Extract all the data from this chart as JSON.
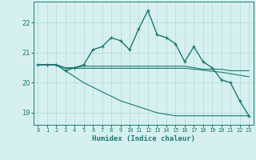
{
  "title": "",
  "xlabel": "Humidex (Indice chaleur)",
  "bg_color": "#d6f0f0",
  "line_color": "#1a7a6e",
  "grid_color": "#b0d8d8",
  "xlim": [
    -0.5,
    23.5
  ],
  "ylim": [
    18.6,
    22.7
  ],
  "xticks": [
    0,
    1,
    2,
    3,
    4,
    5,
    6,
    7,
    8,
    9,
    10,
    11,
    12,
    13,
    14,
    15,
    16,
    17,
    18,
    19,
    20,
    21,
    22,
    23
  ],
  "yticks": [
    19,
    20,
    21,
    22
  ],
  "line1": [
    20.6,
    20.6,
    20.6,
    20.4,
    20.5,
    20.6,
    21.1,
    21.2,
    21.5,
    21.4,
    21.1,
    21.8,
    22.4,
    21.6,
    21.5,
    21.3,
    20.7,
    21.2,
    20.7,
    20.5,
    20.1,
    20.0,
    19.4,
    18.9
  ],
  "line2": [
    20.6,
    20.6,
    20.6,
    20.5,
    20.5,
    20.55,
    20.55,
    20.55,
    20.55,
    20.55,
    20.55,
    20.55,
    20.55,
    20.55,
    20.55,
    20.55,
    20.55,
    20.5,
    20.45,
    20.45,
    20.45,
    20.4,
    20.4,
    20.4
  ],
  "line3": [
    20.6,
    20.6,
    20.6,
    20.48,
    20.48,
    20.48,
    20.48,
    20.48,
    20.48,
    20.48,
    20.48,
    20.48,
    20.48,
    20.48,
    20.48,
    20.48,
    20.48,
    20.45,
    20.42,
    20.38,
    20.35,
    20.3,
    20.25,
    20.2
  ],
  "line4": [
    20.6,
    20.6,
    20.6,
    20.4,
    20.2,
    20.0,
    19.85,
    19.7,
    19.55,
    19.4,
    19.3,
    19.2,
    19.1,
    19.0,
    18.95,
    18.9,
    18.9,
    18.9,
    18.9,
    18.9,
    18.9,
    18.9,
    18.9,
    18.9
  ]
}
